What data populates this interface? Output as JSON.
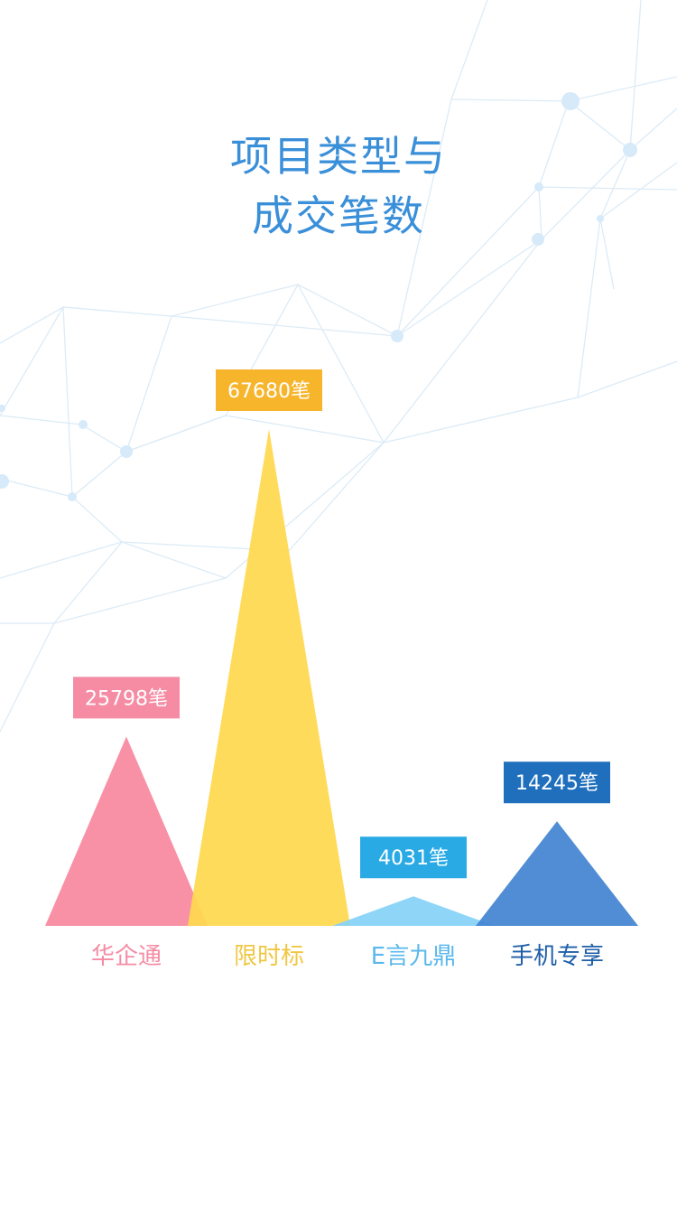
{
  "page": {
    "title_line1": "项目类型与",
    "title_line2": "成交笔数",
    "title_color": "#3a8fd9"
  },
  "chart_data": {
    "type": "bar",
    "categories": [
      "华企通",
      "限时标",
      "E言九鼎",
      "手机专享"
    ],
    "values": [
      25798,
      67680,
      4031,
      14245
    ],
    "value_labels": [
      "25798笔",
      "67680笔",
      "4031笔",
      "14245笔"
    ],
    "unit": "笔",
    "ylim": [
      0,
      67680
    ],
    "grid": false,
    "legend": "none",
    "colors": {
      "fill": [
        "#f9899f",
        "#ffd84f",
        "#86d2f8",
        "#4384d2"
      ],
      "label_bg": [
        "#f58ca4",
        "#f7b52c",
        "#29aae5",
        "#1f6fbd"
      ],
      "category_text": [
        "#f58ca4",
        "#f0c742",
        "#5ab8ec",
        "#1f5fa8"
      ]
    }
  }
}
